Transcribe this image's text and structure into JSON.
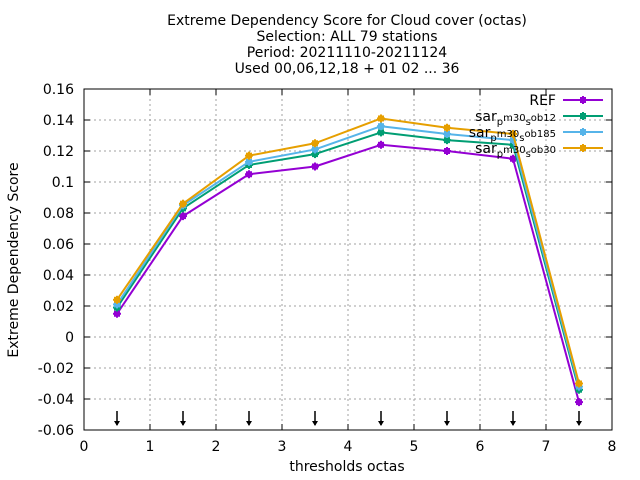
{
  "chart_data": {
    "type": "line",
    "title_lines": [
      "Extreme Dependency Score  for Cloud cover (octas)",
      "Selection: ALL     79 stations",
      "Period: 20211110-20211124",
      "Used 00,06,12,18 + 01 02 ... 36"
    ],
    "xlabel": "thresholds octas",
    "ylabel": "Extreme Dependency Score",
    "xlim": [
      0,
      8
    ],
    "ylim": [
      -0.06,
      0.16
    ],
    "xticks": [
      0,
      1,
      2,
      3,
      4,
      5,
      6,
      7,
      8
    ],
    "yticks": [
      -0.06,
      -0.04,
      -0.02,
      0,
      0.02,
      0.04,
      0.06,
      0.08,
      0.1,
      0.12,
      0.14,
      0.16
    ],
    "xtick_labels": [
      "0",
      "1",
      "2",
      "3",
      "4",
      "5",
      "6",
      "7",
      "8"
    ],
    "ytick_labels": [
      "-0.06",
      "-0.04",
      "-0.02",
      "0",
      "0.02",
      "0.04",
      "0.06",
      "0.08",
      "0.1",
      "0.12",
      "0.14",
      "0.16"
    ],
    "grid": true,
    "legend_position": "top-right",
    "x": [
      0.5,
      1.5,
      2.5,
      3.5,
      4.5,
      5.5,
      6.5,
      7.5
    ],
    "threshold_arrows_x": [
      0.5,
      1.5,
      2.5,
      3.5,
      4.5,
      5.5,
      6.5,
      7.5
    ],
    "series": [
      {
        "name": "REF",
        "color": "#9400d3",
        "values": [
          0.015,
          0.078,
          0.105,
          0.11,
          0.124,
          0.12,
          0.115,
          -0.042
        ]
      },
      {
        "name_parts": [
          "sar",
          "p",
          "m30",
          "s",
          "ob12"
        ],
        "color": "#009e73",
        "values": [
          0.019,
          0.083,
          0.111,
          0.118,
          0.132,
          0.127,
          0.124,
          -0.034
        ]
      },
      {
        "name_parts": [
          "sar",
          "p",
          "m30",
          "s",
          "ob185"
        ],
        "color": "#56b4e9",
        "values": [
          0.021,
          0.085,
          0.113,
          0.121,
          0.136,
          0.131,
          0.127,
          -0.032
        ]
      },
      {
        "name_parts": [
          "sar",
          "p",
          "m30",
          "s",
          "ob30"
        ],
        "color": "#e69f00",
        "values": [
          0.024,
          0.086,
          0.117,
          0.125,
          0.141,
          0.135,
          0.131,
          -0.03
        ]
      }
    ]
  }
}
